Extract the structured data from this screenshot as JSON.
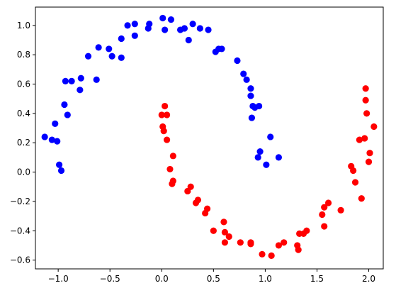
{
  "chart_data": {
    "type": "scatter",
    "title": "",
    "xlabel": "",
    "ylabel": "",
    "xlim": [
      -1.22,
      2.14
    ],
    "ylim": [
      -0.66,
      1.125
    ],
    "x_ticks": [
      -1.0,
      -0.5,
      0.0,
      0.5,
      1.0,
      1.5,
      2.0
    ],
    "x_tick_labels": [
      "−1.0",
      "−0.5",
      "0.0",
      "0.5",
      "1.0",
      "1.5",
      "2.0"
    ],
    "y_ticks": [
      -0.6,
      -0.4,
      -0.2,
      0.0,
      0.2,
      0.4,
      0.6,
      0.8,
      1.0
    ],
    "y_tick_labels": [
      "−0.6",
      "−0.4",
      "−0.2",
      "0.0",
      "0.2",
      "0.4",
      "0.6",
      "0.8",
      "1.0"
    ],
    "grid": false,
    "series": [
      {
        "color": "#0000ff",
        "points": [
          [
            -1.13,
            0.24
          ],
          [
            -1.06,
            0.22
          ],
          [
            -1.03,
            0.33
          ],
          [
            -1.01,
            0.21
          ],
          [
            -0.99,
            0.05
          ],
          [
            -0.97,
            0.01
          ],
          [
            -0.94,
            0.46
          ],
          [
            -0.93,
            0.62
          ],
          [
            -0.91,
            0.39
          ],
          [
            -0.87,
            0.62
          ],
          [
            -0.79,
            0.56
          ],
          [
            -0.78,
            0.64
          ],
          [
            -0.71,
            0.79
          ],
          [
            -0.63,
            0.63
          ],
          [
            -0.61,
            0.85
          ],
          [
            -0.51,
            0.84
          ],
          [
            -0.48,
            0.79
          ],
          [
            -0.39,
            0.78
          ],
          [
            -0.39,
            0.91
          ],
          [
            -0.33,
            1.0
          ],
          [
            -0.26,
            1.01
          ],
          [
            -0.26,
            0.93
          ],
          [
            -0.13,
            0.98
          ],
          [
            -0.12,
            1.01
          ],
          [
            0.01,
            1.05
          ],
          [
            0.03,
            0.97
          ],
          [
            0.09,
            1.04
          ],
          [
            0.18,
            0.97
          ],
          [
            0.22,
            0.98
          ],
          [
            0.26,
            0.9
          ],
          [
            0.3,
            1.01
          ],
          [
            0.37,
            0.98
          ],
          [
            0.45,
            0.97
          ],
          [
            0.52,
            0.82
          ],
          [
            0.55,
            0.84
          ],
          [
            0.58,
            0.84
          ],
          [
            0.73,
            0.76
          ],
          [
            0.79,
            0.67
          ],
          [
            0.82,
            0.63
          ],
          [
            0.86,
            0.57
          ],
          [
            0.86,
            0.52
          ],
          [
            0.87,
            0.37
          ],
          [
            0.88,
            0.45
          ],
          [
            0.9,
            0.44
          ],
          [
            0.93,
            0.1
          ],
          [
            0.94,
            0.45
          ],
          [
            0.95,
            0.14
          ],
          [
            1.01,
            0.05
          ],
          [
            1.05,
            0.24
          ],
          [
            1.13,
            0.1
          ]
        ]
      },
      {
        "color": "#ff0000",
        "points": [
          [
            0.0,
            0.39
          ],
          [
            0.01,
            0.31
          ],
          [
            0.02,
            0.28
          ],
          [
            0.03,
            0.45
          ],
          [
            0.05,
            0.39
          ],
          [
            0.05,
            0.22
          ],
          [
            0.08,
            0.02
          ],
          [
            0.1,
            -0.08
          ],
          [
            0.11,
            0.11
          ],
          [
            0.11,
            -0.06
          ],
          [
            0.25,
            -0.13
          ],
          [
            0.28,
            -0.1
          ],
          [
            0.33,
            -0.21
          ],
          [
            0.35,
            -0.19
          ],
          [
            0.42,
            -0.28
          ],
          [
            0.44,
            -0.25
          ],
          [
            0.5,
            -0.4
          ],
          [
            0.6,
            -0.34
          ],
          [
            0.61,
            -0.41
          ],
          [
            0.61,
            -0.48
          ],
          [
            0.65,
            -0.44
          ],
          [
            0.76,
            -0.48
          ],
          [
            0.86,
            -0.48
          ],
          [
            0.86,
            -0.49
          ],
          [
            0.97,
            -0.56
          ],
          [
            1.06,
            -0.57
          ],
          [
            1.13,
            -0.5
          ],
          [
            1.18,
            -0.48
          ],
          [
            1.31,
            -0.5
          ],
          [
            1.32,
            -0.53
          ],
          [
            1.33,
            -0.42
          ],
          [
            1.37,
            -0.42
          ],
          [
            1.4,
            -0.4
          ],
          [
            1.55,
            -0.29
          ],
          [
            1.57,
            -0.37
          ],
          [
            1.57,
            -0.24
          ],
          [
            1.61,
            -0.21
          ],
          [
            1.73,
            -0.26
          ],
          [
            1.83,
            0.04
          ],
          [
            1.85,
            0.01
          ],
          [
            1.87,
            -0.07
          ],
          [
            1.91,
            0.22
          ],
          [
            1.93,
            -0.18
          ],
          [
            1.96,
            0.23
          ],
          [
            1.97,
            0.49
          ],
          [
            1.97,
            0.57
          ],
          [
            1.98,
            0.4
          ],
          [
            2.0,
            0.07
          ],
          [
            2.01,
            0.13
          ],
          [
            2.05,
            0.31
          ]
        ]
      }
    ]
  }
}
